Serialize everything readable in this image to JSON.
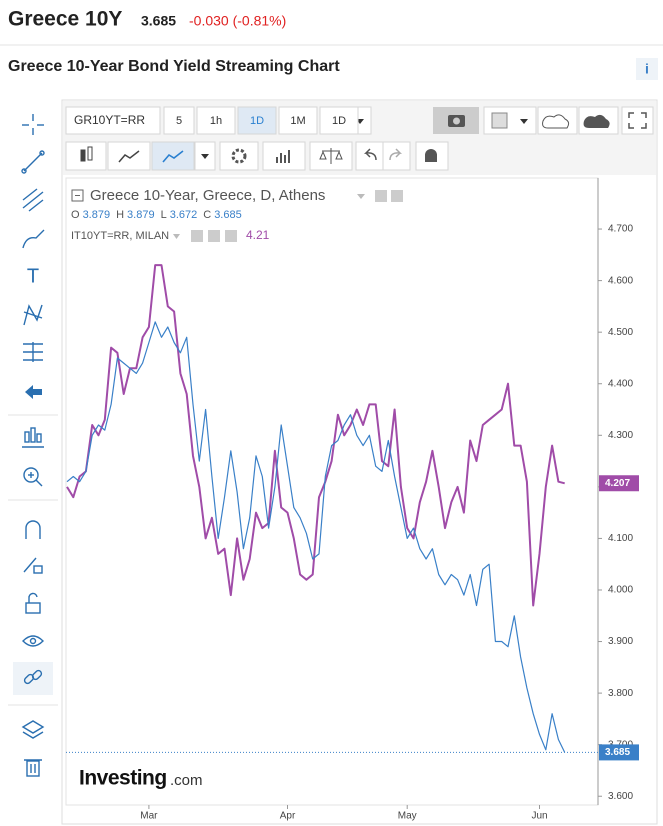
{
  "header": {
    "title": "Greece 10Y",
    "price": "3.685",
    "change": "-0.030 (-0.81%)"
  },
  "page_title": "Greece 10-Year Bond Yield Streaming Chart",
  "info_icon": "i",
  "toolbar": {
    "symbol": "GR10YT=RR",
    "intervals": [
      "5",
      "1h",
      "1D",
      "1M",
      "1D"
    ]
  },
  "chart_data": {
    "type": "line",
    "categories": [
      null,
      null,
      null,
      null,
      null,
      null,
      null,
      null,
      null,
      null,
      null,
      null,
      null,
      "Mar",
      null,
      null,
      null,
      null,
      null,
      null,
      null,
      null,
      null,
      null,
      null,
      null,
      null,
      null,
      null,
      null,
      null,
      null,
      null,
      null,
      null,
      "Apr",
      null,
      null,
      null,
      null,
      null,
      null,
      null,
      null,
      null,
      null,
      null,
      null,
      null,
      null,
      null,
      null,
      null,
      null,
      "May",
      null,
      null,
      null,
      null,
      null,
      null,
      null,
      null,
      null,
      null,
      null,
      null,
      null,
      null,
      null,
      null,
      null,
      null,
      null,
      null,
      "Jun",
      null,
      null,
      null,
      null
    ],
    "series": [
      {
        "name": "Greece 10-Year, Greece, D, Athens",
        "color": "#3a80c8",
        "values": [
          4.21,
          4.22,
          4.21,
          4.23,
          4.3,
          4.32,
          4.31,
          4.36,
          4.45,
          4.44,
          4.43,
          4.42,
          4.44,
          4.48,
          4.52,
          4.49,
          4.51,
          4.48,
          4.46,
          4.49,
          4.36,
          4.25,
          4.35,
          4.22,
          4.1,
          4.18,
          4.27,
          4.19,
          4.08,
          4.14,
          4.26,
          4.22,
          4.12,
          4.2,
          4.32,
          4.24,
          4.16,
          4.14,
          4.11,
          4.06,
          4.07,
          4.22,
          4.28,
          4.29,
          4.32,
          4.34,
          4.3,
          4.28,
          4.3,
          4.24,
          4.23,
          4.29,
          4.22,
          4.16,
          4.1,
          4.12,
          4.08,
          4.06,
          4.08,
          4.03,
          4.01,
          4.03,
          4.02,
          3.99,
          4.03,
          3.97,
          4.04,
          4.05,
          3.9,
          3.9,
          3.89,
          3.95,
          3.87,
          3.81,
          3.76,
          3.72,
          3.69,
          3.76,
          3.71,
          3.685
        ]
      },
      {
        "name": "IT10YT=RR, MILAN",
        "color": "#a04ca8",
        "legend_value": "4.21",
        "values": [
          4.2,
          4.18,
          4.22,
          4.23,
          4.32,
          4.3,
          4.33,
          4.47,
          4.46,
          4.38,
          4.43,
          4.43,
          4.49,
          4.51,
          4.63,
          4.63,
          4.55,
          4.54,
          4.42,
          4.38,
          4.26,
          4.2,
          4.1,
          4.14,
          4.07,
          4.08,
          3.99,
          4.1,
          4.02,
          4.06,
          4.15,
          4.12,
          4.13,
          4.27,
          4.16,
          4.15,
          4.1,
          4.03,
          4.02,
          4.03,
          4.18,
          4.21,
          4.25,
          4.34,
          4.3,
          4.32,
          4.35,
          4.32,
          4.36,
          4.36,
          4.25,
          4.24,
          4.35,
          4.2,
          4.12,
          4.1,
          4.17,
          4.21,
          4.27,
          4.2,
          4.12,
          4.17,
          4.2,
          4.15,
          4.29,
          4.25,
          4.32,
          4.33,
          4.34,
          4.35,
          4.4,
          4.28,
          4.28,
          4.21,
          3.97,
          4.07,
          4.2,
          4.28,
          4.21,
          4.207
        ]
      }
    ],
    "legend_ohlc": [
      {
        "label": "O",
        "value": "3.879"
      },
      {
        "label": "H",
        "value": "3.879"
      },
      {
        "label": "L",
        "value": "3.672"
      },
      {
        "label": "C",
        "value": "3.685"
      }
    ],
    "ylim": [
      3.583,
      4.799
    ],
    "yticks": [
      {
        "value": 3.6,
        "label": "3.600"
      },
      {
        "value": 3.7,
        "label": "3.700"
      },
      {
        "value": 3.8,
        "label": "3.800"
      },
      {
        "value": 3.9,
        "label": "3.900"
      },
      {
        "value": 4.0,
        "label": "4.000"
      },
      {
        "value": 4.1,
        "label": "4.100"
      },
      {
        "value": 4.2,
        "label": "4.200"
      },
      {
        "value": 4.3,
        "label": "4.300"
      },
      {
        "value": 4.4,
        "label": "4.400"
      },
      {
        "value": 4.5,
        "label": "4.500"
      },
      {
        "value": 4.6,
        "label": "4.600"
      },
      {
        "value": 4.7,
        "label": "4.700"
      }
    ],
    "grid": false
  },
  "logo": {
    "brand": "Investing",
    "suffix": ".com"
  }
}
